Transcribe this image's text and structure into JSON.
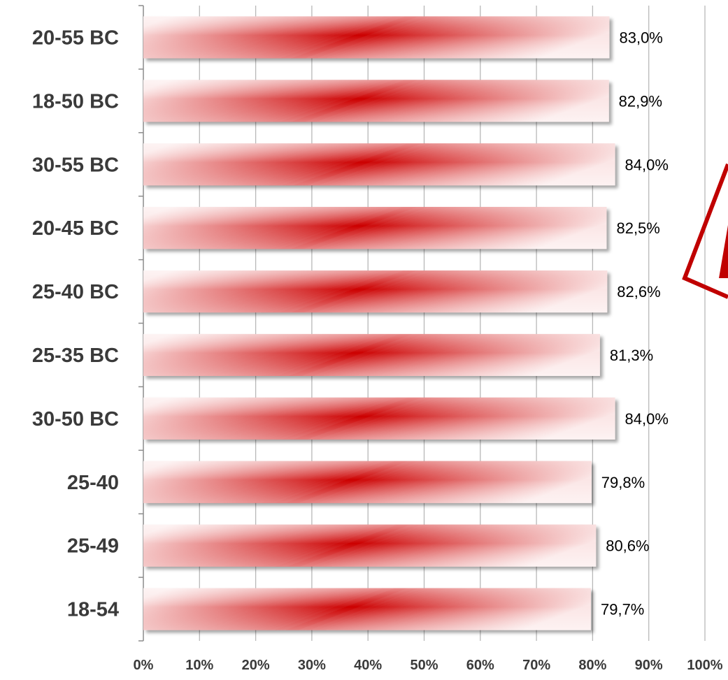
{
  "chart_data": {
    "type": "bar",
    "orientation": "horizontal",
    "categories": [
      "20-55 BC",
      "18-50 BC",
      "30-55 BC",
      "20-45 BC",
      "25-40 BC",
      "25-35 BC",
      "30-50 BC",
      "25-40",
      "25-49",
      "18-54"
    ],
    "values": [
      83.0,
      82.9,
      84.0,
      82.5,
      82.6,
      81.3,
      84.0,
      79.8,
      80.6,
      79.7
    ],
    "value_labels": [
      "83,0%",
      "82,9%",
      "84,0%",
      "82,5%",
      "82,6%",
      "81,3%",
      "84,0%",
      "79,8%",
      "80,6%",
      "79,7%"
    ],
    "x_ticks": [
      "0%",
      "10%",
      "20%",
      "30%",
      "40%",
      "50%",
      "60%",
      "70%",
      "80%",
      "90%",
      "100%"
    ],
    "xlim": [
      0,
      100
    ],
    "grid": true,
    "title": "",
    "xlabel": "",
    "ylabel": "",
    "colors": {
      "bar": "#cc0000",
      "bar_light": "#fbe6e6",
      "grid": "#b8b8b8",
      "annotation": "#c00000"
    }
  }
}
